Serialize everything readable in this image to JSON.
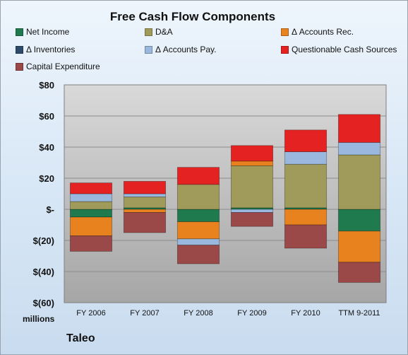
{
  "chart_data": {
    "type": "bar",
    "stacked": true,
    "title": "Free Cash Flow Components",
    "units_label": "millions",
    "company": "Taleo",
    "categories": [
      "FY 2006",
      "FY 2007",
      "FY 2008",
      "FY 2009",
      "FY 2010",
      "TTM 9-2011"
    ],
    "ylim": [
      -60,
      80
    ],
    "yticks": [
      {
        "value": 80,
        "label": "$80"
      },
      {
        "value": 60,
        "label": "$60"
      },
      {
        "value": 40,
        "label": "$40"
      },
      {
        "value": 20,
        "label": "$20"
      },
      {
        "value": 0,
        "label": "$-"
      },
      {
        "value": -20,
        "label": "$(20)"
      },
      {
        "value": -40,
        "label": "$(40)"
      },
      {
        "value": -60,
        "label": "$(60)"
      }
    ],
    "grid": true,
    "legend_position": "top",
    "series": [
      {
        "name": "Net Income",
        "color": "#1f7a4d",
        "values": [
          -5,
          1,
          -8,
          1,
          1,
          -14
        ]
      },
      {
        "name": "D&A",
        "color": "#a09b5a",
        "values": [
          5,
          7,
          16,
          27,
          28,
          35
        ]
      },
      {
        "name": "Δ Accounts Rec.",
        "color": "#e8821e",
        "values": [
          -12,
          -2,
          -11,
          3,
          -10,
          -20
        ]
      },
      {
        "name": "Δ Inventories",
        "color": "#2e4a6b",
        "values": [
          0,
          0,
          0,
          0,
          0,
          0
        ]
      },
      {
        "name": "Δ Accounts Pay.",
        "color": "#9ab8dd",
        "values": [
          5,
          2,
          -4,
          -2,
          8,
          8
        ]
      },
      {
        "name": "Questionable Cash Sources",
        "color": "#e52222",
        "values": [
          7,
          8,
          11,
          10,
          14,
          18
        ]
      },
      {
        "name": "Capital Expenditure",
        "color": "#9a4848",
        "values": [
          -10,
          -13,
          -12,
          -9,
          -15,
          -13
        ]
      }
    ]
  }
}
